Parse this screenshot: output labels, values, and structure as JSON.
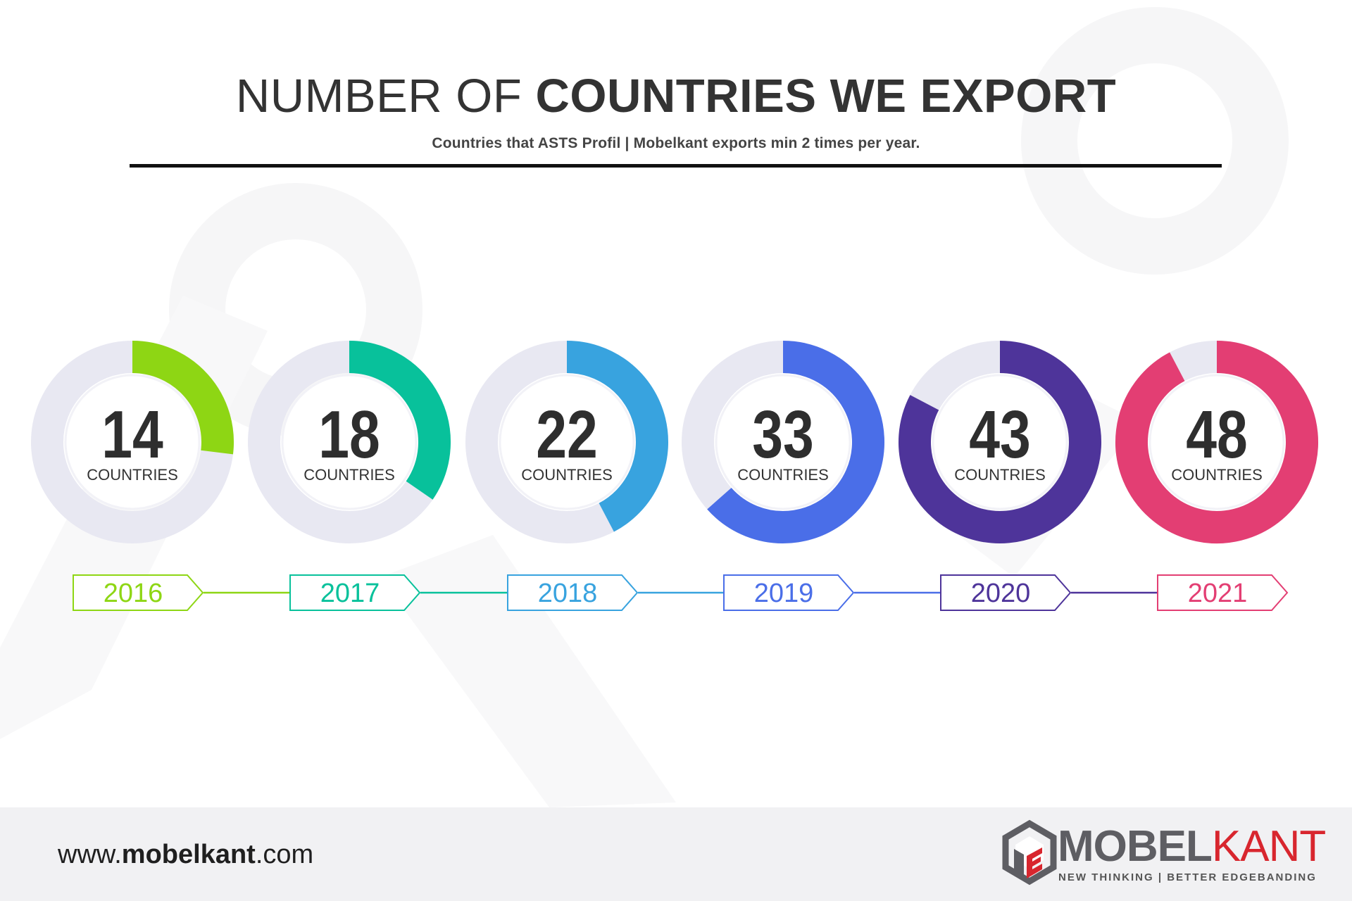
{
  "header": {
    "title_light": "NUMBER OF",
    "title_bold": "COUNTRIES WE EXPORT",
    "subtitle": "Countries that ASTS Profil  |  Mobelkant exports min 2 times per year."
  },
  "chart_data": {
    "type": "pie",
    "unit_label": "COUNTRIES",
    "max": 52,
    "categories": [
      "2016",
      "2017",
      "2018",
      "2019",
      "2020",
      "2021"
    ],
    "values": [
      14,
      18,
      22,
      33,
      43,
      48
    ],
    "colors": [
      "#8ed614",
      "#08c19b",
      "#38a3df",
      "#4a6ee8",
      "#4e349a",
      "#e33e73"
    ],
    "track_color": "#e8e8f2"
  },
  "footer": {
    "url_prefix": "www.",
    "url_bold": "mobelkant",
    "url_suffix": ".com",
    "brand_part1": "MOBEL",
    "brand_part2": "KANT",
    "tagline": "NEW THINKING | BETTER EDGEBANDING",
    "logo_icon": "mobelkant-cube-logo-icon",
    "brand_gray": "#5e5e63",
    "brand_red": "#d8262e"
  }
}
